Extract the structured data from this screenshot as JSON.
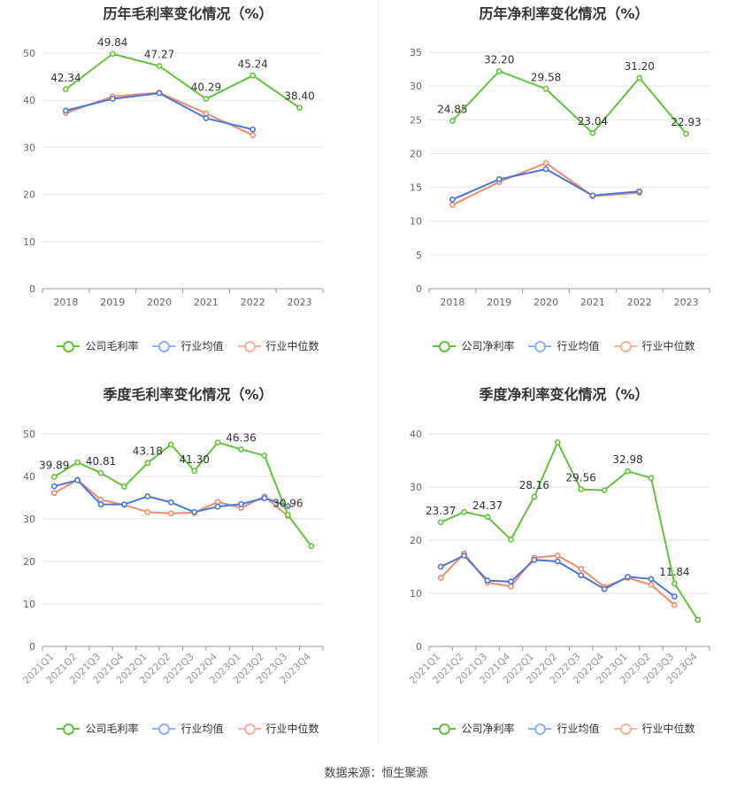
{
  "source": "数据来源：恒生聚源",
  "colors": {
    "company": "#62c33a",
    "avg": "#4a76d8",
    "median": "#f08b6a",
    "grid": "#e6e6e6",
    "axis": "#999999",
    "tick": "#666666"
  },
  "charts": [
    {
      "title": "历年毛利率变化情况（%）",
      "legend": [
        "公司毛利率",
        "行业均值",
        "行业中位数"
      ]
    },
    {
      "title": "历年净利率变化情况（%）",
      "legend": [
        "公司净利率",
        "行业均值",
        "行业中位数"
      ]
    },
    {
      "title": "季度毛利率变化情况（%）",
      "legend": [
        "公司毛利率",
        "行业均值",
        "行业中位数"
      ]
    },
    {
      "title": "季度净利率变化情况（%）",
      "legend": [
        "公司净利率",
        "行业均值",
        "行业中位数"
      ]
    }
  ],
  "chart_data": [
    {
      "type": "line",
      "title": "历年毛利率变化情况（%）",
      "categories": [
        "2018",
        "2019",
        "2020",
        "2021",
        "2022",
        "2023"
      ],
      "ylim": [
        0,
        50
      ],
      "yticks": [
        0,
        10,
        20,
        30,
        40,
        50
      ],
      "series": [
        {
          "name": "公司毛利率",
          "values": [
            42.34,
            49.84,
            47.27,
            40.29,
            45.24,
            38.4
          ]
        },
        {
          "name": "行业均值",
          "values": [
            37.8,
            40.3,
            41.5,
            36.2,
            33.8,
            null
          ]
        },
        {
          "name": "行业中位数",
          "values": [
            37.3,
            40.8,
            41.6,
            37.2,
            32.6,
            null
          ]
        }
      ],
      "labels": [
        "42.34",
        "49.84",
        "47.27",
        "40.29",
        "45.24",
        "38.40"
      ]
    },
    {
      "type": "line",
      "title": "历年净利率变化情况（%）",
      "categories": [
        "2018",
        "2019",
        "2020",
        "2021",
        "2022",
        "2023"
      ],
      "ylim": [
        0,
        35
      ],
      "yticks": [
        0,
        5,
        10,
        15,
        20,
        25,
        30,
        35
      ],
      "series": [
        {
          "name": "公司净利率",
          "values": [
            24.85,
            32.2,
            29.58,
            23.04,
            31.2,
            22.93
          ]
        },
        {
          "name": "行业均值",
          "values": [
            13.2,
            16.2,
            17.7,
            13.8,
            14.4,
            null
          ]
        },
        {
          "name": "行业中位数",
          "values": [
            12.4,
            15.8,
            18.6,
            13.7,
            14.2,
            null
          ]
        }
      ],
      "labels": [
        "24.85",
        "32.20",
        "29.58",
        "23.04",
        "31.20",
        "22.93"
      ]
    },
    {
      "type": "line",
      "title": "季度毛利率变化情况（%）",
      "categories": [
        "2021Q1",
        "2021Q2",
        "2021Q3",
        "2021Q4",
        "2022Q1",
        "2022Q2",
        "2022Q3",
        "2022Q4",
        "2023Q1",
        "2023Q2",
        "2023Q3",
        "2023Q4"
      ],
      "ylim": [
        0,
        50
      ],
      "yticks": [
        0,
        10,
        20,
        30,
        40,
        50
      ],
      "series": [
        {
          "name": "公司毛利率",
          "values": [
            39.89,
            43.3,
            40.81,
            37.6,
            43.18,
            47.5,
            41.3,
            48.0,
            46.36,
            44.9,
            30.96,
            23.6
          ]
        },
        {
          "name": "行业均值",
          "values": [
            37.7,
            39.1,
            33.4,
            33.4,
            35.3,
            33.9,
            31.6,
            32.9,
            33.5,
            34.9,
            33.0,
            null
          ]
        },
        {
          "name": "行业中位数",
          "values": [
            36.1,
            39.2,
            34.5,
            33.3,
            31.6,
            31.3,
            31.5,
            34.0,
            32.6,
            35.3,
            30.7,
            null
          ]
        }
      ],
      "labels": [
        "39.89",
        "",
        "40.81",
        "",
        "43.18",
        "",
        "41.30",
        "",
        "46.36",
        "",
        "30.96",
        ""
      ]
    },
    {
      "type": "line",
      "title": "季度净利率变化情况（%）",
      "categories": [
        "2021Q1",
        "2021Q2",
        "2021Q3",
        "2021Q4",
        "2022Q1",
        "2022Q2",
        "2022Q3",
        "2022Q4",
        "2023Q1",
        "2023Q2",
        "2023Q3",
        "2023Q4"
      ],
      "ylim": [
        0,
        40
      ],
      "yticks": [
        0,
        10,
        20,
        30,
        40
      ],
      "series": [
        {
          "name": "公司净利率",
          "values": [
            23.37,
            25.3,
            24.37,
            20.1,
            28.16,
            38.4,
            29.56,
            29.4,
            32.98,
            31.7,
            11.84,
            5.0
          ]
        },
        {
          "name": "行业均值",
          "values": [
            15.0,
            17.1,
            12.4,
            12.2,
            16.3,
            16.0,
            13.4,
            10.8,
            13.1,
            12.7,
            9.4,
            null
          ]
        },
        {
          "name": "行业中位数",
          "values": [
            12.9,
            17.5,
            12.0,
            11.3,
            16.7,
            17.1,
            14.6,
            11.2,
            12.9,
            11.6,
            7.8,
            null
          ]
        }
      ],
      "labels": [
        "23.37",
        "",
        "24.37",
        "",
        "28.16",
        "",
        "29.56",
        "",
        "32.98",
        "",
        "11.84",
        ""
      ]
    }
  ]
}
